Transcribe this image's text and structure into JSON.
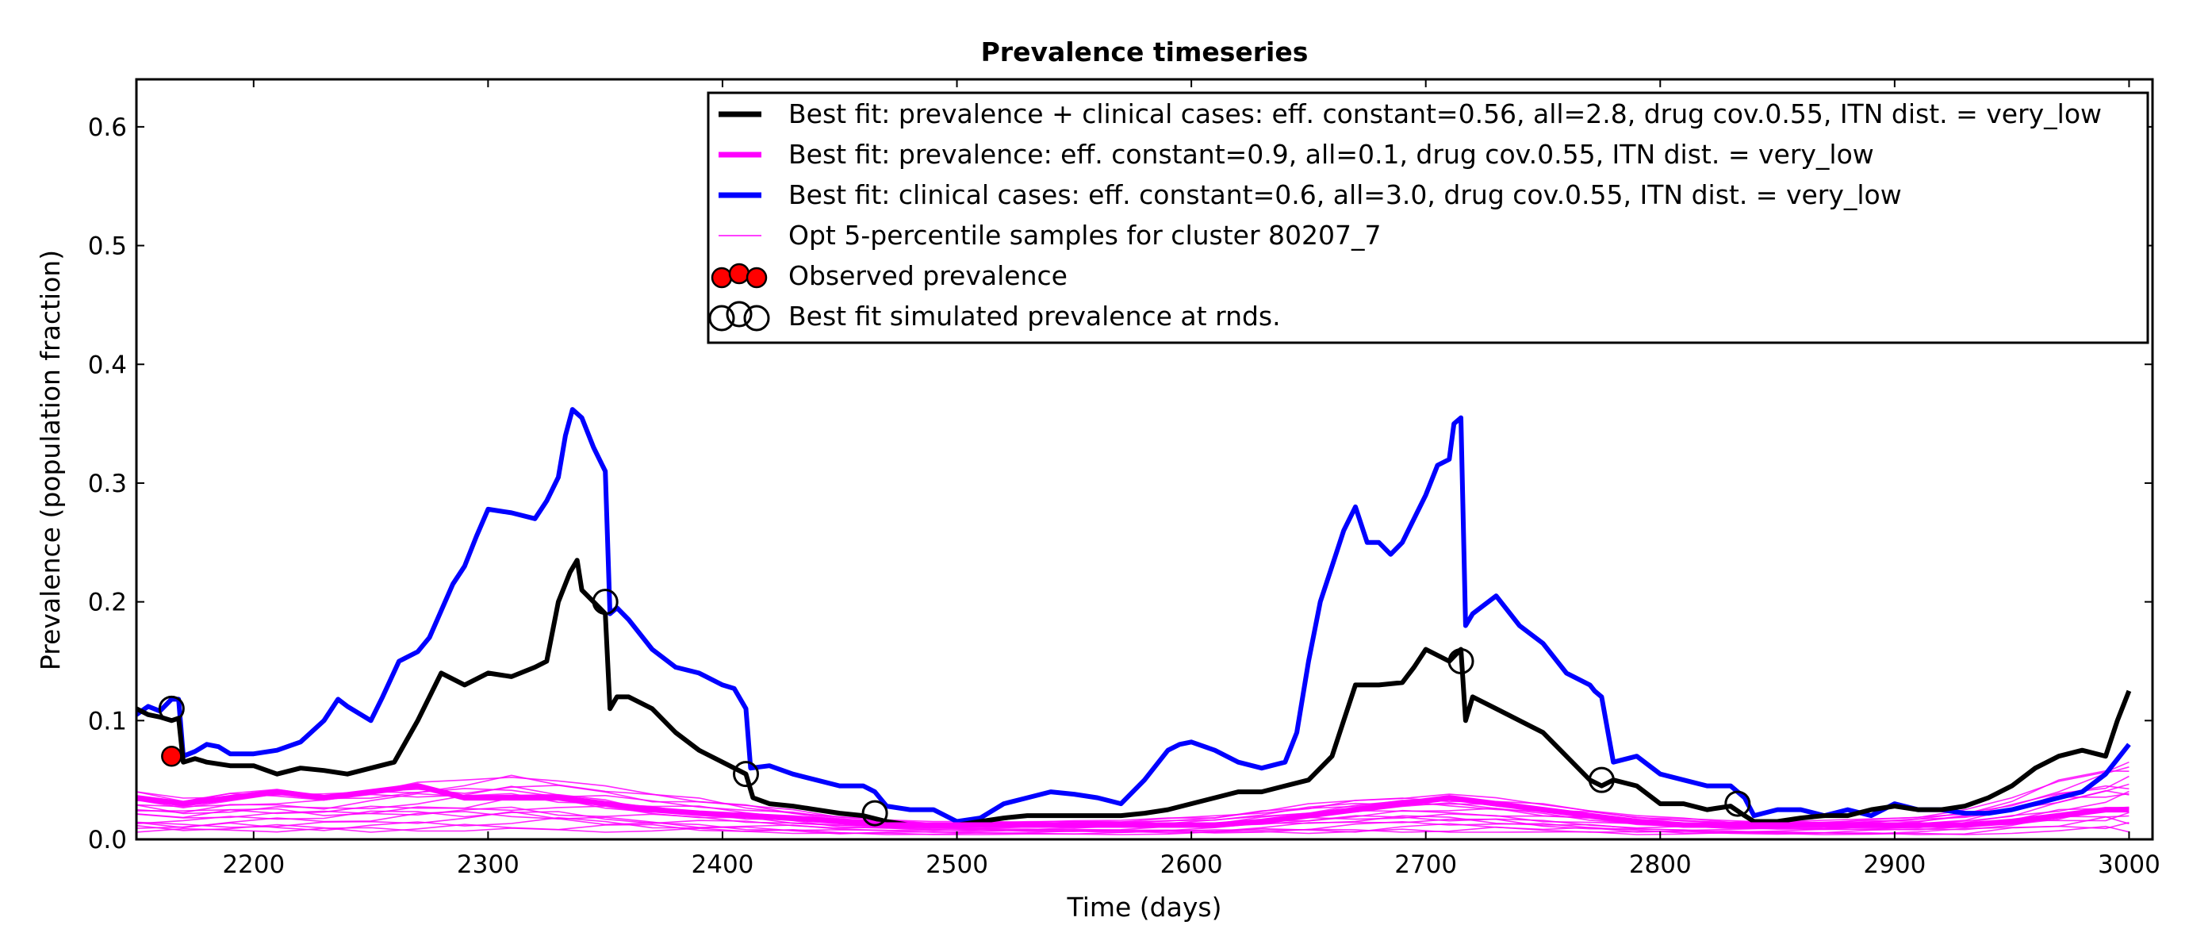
{
  "chart_data": {
    "type": "line",
    "title": "Prevalence timeseries",
    "xlabel": "Time (days)",
    "ylabel": "Prevalence (population fraction)",
    "xlim": [
      2150,
      3010
    ],
    "ylim": [
      0.0,
      0.64
    ],
    "xticks": [
      2200,
      2300,
      2400,
      2500,
      2600,
      2700,
      2800,
      2900,
      3000
    ],
    "yticks": [
      0.0,
      0.1,
      0.2,
      0.3,
      0.4,
      0.5,
      0.6
    ],
    "ytick_labels": [
      "0.0",
      "0.1",
      "0.2",
      "0.3",
      "0.4",
      "0.5",
      "0.6"
    ],
    "grid": false,
    "legend_position": "top-right",
    "colors": {
      "combined": "#000000",
      "prevalence": "#ff00ff",
      "clinical": "#0000ff",
      "samples": "#ff00ff",
      "observed": "#ff0000"
    },
    "legend": [
      {
        "key": "combined",
        "label": "Best fit: prevalence + clinical cases: eff. constant=0.56, all=2.8, drug cov.0.55, ITN dist. = very_low",
        "style": "thick-line"
      },
      {
        "key": "prevalence",
        "label": "Best fit: prevalence: eff. constant=0.9, all=0.1, drug cov.0.55, ITN dist. = very_low",
        "style": "thick-line"
      },
      {
        "key": "clinical",
        "label": "Best fit: clinical cases: eff. constant=0.6, all=3.0, drug cov.0.55, ITN dist. = very_low",
        "style": "thick-line"
      },
      {
        "key": "samples",
        "label": "Opt 5-percentile samples for cluster 80207_7",
        "style": "thin-line"
      },
      {
        "key": "observed",
        "label": "Observed prevalence",
        "style": "filled-markers"
      },
      {
        "key": "simulated_points",
        "label": "Best fit simulated prevalence at rnds.",
        "style": "open-markers"
      }
    ],
    "series": [
      {
        "key": "clinical",
        "x": [
          2150,
          2155,
          2160,
          2165,
          2168,
          2170,
          2175,
          2180,
          2185,
          2190,
          2200,
          2210,
          2220,
          2230,
          2236,
          2240,
          2250,
          2255,
          2262,
          2270,
          2275,
          2285,
          2290,
          2295,
          2300,
          2310,
          2320,
          2325,
          2330,
          2333,
          2336,
          2340,
          2345,
          2350,
          2352,
          2355,
          2360,
          2370,
          2380,
          2390,
          2400,
          2405,
          2410,
          2412,
          2420,
          2430,
          2440,
          2450,
          2460,
          2465,
          2470,
          2480,
          2490,
          2500,
          2510,
          2520,
          2530,
          2540,
          2550,
          2560,
          2570,
          2580,
          2590,
          2595,
          2600,
          2610,
          2620,
          2630,
          2640,
          2645,
          2650,
          2655,
          2660,
          2665,
          2670,
          2675,
          2680,
          2685,
          2690,
          2695,
          2700,
          2705,
          2710,
          2712,
          2715,
          2717,
          2720,
          2730,
          2740,
          2750,
          2760,
          2770,
          2772,
          2775,
          2780,
          2790,
          2800,
          2810,
          2820,
          2830,
          2836,
          2840,
          2850,
          2860,
          2870,
          2880,
          2890,
          2900,
          2910,
          2920,
          2930,
          2940,
          2950,
          2960,
          2970,
          2980,
          2990,
          3000
        ],
        "y": [
          0.105,
          0.112,
          0.108,
          0.118,
          0.118,
          0.07,
          0.074,
          0.08,
          0.078,
          0.072,
          0.072,
          0.075,
          0.082,
          0.1,
          0.118,
          0.112,
          0.1,
          0.12,
          0.15,
          0.158,
          0.17,
          0.215,
          0.23,
          0.255,
          0.278,
          0.275,
          0.27,
          0.285,
          0.305,
          0.34,
          0.362,
          0.355,
          0.33,
          0.31,
          0.19,
          0.195,
          0.185,
          0.16,
          0.145,
          0.14,
          0.13,
          0.127,
          0.11,
          0.06,
          0.062,
          0.055,
          0.05,
          0.045,
          0.045,
          0.04,
          0.028,
          0.025,
          0.025,
          0.015,
          0.018,
          0.03,
          0.035,
          0.04,
          0.038,
          0.035,
          0.03,
          0.05,
          0.075,
          0.08,
          0.082,
          0.075,
          0.065,
          0.06,
          0.065,
          0.09,
          0.15,
          0.2,
          0.23,
          0.26,
          0.28,
          0.25,
          0.25,
          0.24,
          0.25,
          0.27,
          0.29,
          0.315,
          0.32,
          0.35,
          0.355,
          0.18,
          0.19,
          0.205,
          0.18,
          0.165,
          0.14,
          0.13,
          0.125,
          0.12,
          0.065,
          0.07,
          0.055,
          0.05,
          0.045,
          0.045,
          0.035,
          0.02,
          0.025,
          0.025,
          0.02,
          0.025,
          0.02,
          0.03,
          0.025,
          0.025,
          0.022,
          0.022,
          0.025,
          0.03,
          0.035,
          0.04,
          0.055,
          0.08
        ]
      },
      {
        "key": "combined",
        "x": [
          2150,
          2155,
          2160,
          2165,
          2168,
          2170,
          2175,
          2180,
          2190,
          2200,
          2210,
          2220,
          2230,
          2240,
          2250,
          2260,
          2270,
          2280,
          2290,
          2300,
          2310,
          2320,
          2325,
          2330,
          2335,
          2338,
          2340,
          2345,
          2350,
          2352,
          2355,
          2360,
          2370,
          2380,
          2390,
          2400,
          2410,
          2413,
          2420,
          2430,
          2440,
          2450,
          2460,
          2470,
          2480,
          2490,
          2500,
          2510,
          2520,
          2530,
          2540,
          2550,
          2560,
          2570,
          2580,
          2590,
          2600,
          2610,
          2620,
          2630,
          2640,
          2650,
          2660,
          2665,
          2670,
          2680,
          2690,
          2695,
          2700,
          2705,
          2710,
          2715,
          2717,
          2720,
          2730,
          2740,
          2750,
          2760,
          2770,
          2775,
          2780,
          2790,
          2800,
          2810,
          2820,
          2830,
          2836,
          2840,
          2850,
          2860,
          2870,
          2880,
          2890,
          2900,
          2910,
          2920,
          2930,
          2940,
          2950,
          2960,
          2970,
          2980,
          2990,
          2995,
          3000
        ],
        "y": [
          0.11,
          0.105,
          0.103,
          0.1,
          0.102,
          0.065,
          0.068,
          0.065,
          0.062,
          0.062,
          0.055,
          0.06,
          0.058,
          0.055,
          0.06,
          0.065,
          0.1,
          0.14,
          0.13,
          0.14,
          0.137,
          0.145,
          0.15,
          0.2,
          0.225,
          0.235,
          0.21,
          0.2,
          0.19,
          0.11,
          0.12,
          0.12,
          0.11,
          0.09,
          0.075,
          0.065,
          0.055,
          0.035,
          0.03,
          0.028,
          0.025,
          0.022,
          0.02,
          0.015,
          0.012,
          0.012,
          0.012,
          0.015,
          0.018,
          0.02,
          0.02,
          0.02,
          0.02,
          0.02,
          0.022,
          0.025,
          0.03,
          0.035,
          0.04,
          0.04,
          0.045,
          0.05,
          0.07,
          0.1,
          0.13,
          0.13,
          0.132,
          0.145,
          0.16,
          0.155,
          0.15,
          0.16,
          0.1,
          0.12,
          0.11,
          0.1,
          0.09,
          0.07,
          0.05,
          0.045,
          0.05,
          0.045,
          0.03,
          0.03,
          0.025,
          0.028,
          0.02,
          0.015,
          0.015,
          0.018,
          0.02,
          0.02,
          0.025,
          0.028,
          0.025,
          0.025,
          0.028,
          0.035,
          0.045,
          0.06,
          0.07,
          0.075,
          0.07,
          0.1,
          0.125
        ]
      },
      {
        "key": "prevalence",
        "x": [
          2150,
          2170,
          2190,
          2210,
          2230,
          2250,
          2270,
          2290,
          2310,
          2330,
          2350,
          2370,
          2390,
          2410,
          2430,
          2450,
          2470,
          2490,
          2510,
          2530,
          2550,
          2570,
          2590,
          2610,
          2630,
          2650,
          2670,
          2690,
          2710,
          2730,
          2750,
          2770,
          2790,
          2810,
          2830,
          2850,
          2870,
          2890,
          2910,
          2930,
          2950,
          2970,
          2990,
          3000
        ],
        "y": [
          0.035,
          0.03,
          0.035,
          0.04,
          0.035,
          0.04,
          0.045,
          0.035,
          0.035,
          0.035,
          0.03,
          0.025,
          0.022,
          0.02,
          0.018,
          0.015,
          0.012,
          0.012,
          0.012,
          0.012,
          0.012,
          0.012,
          0.012,
          0.012,
          0.015,
          0.02,
          0.025,
          0.03,
          0.035,
          0.03,
          0.025,
          0.02,
          0.015,
          0.012,
          0.012,
          0.012,
          0.012,
          0.012,
          0.012,
          0.012,
          0.015,
          0.02,
          0.025,
          0.025
        ]
      }
    ],
    "sample_band": {
      "key": "samples",
      "x": [
        2150,
        2170,
        2190,
        2210,
        2230,
        2250,
        2270,
        2290,
        2310,
        2330,
        2350,
        2370,
        2390,
        2410,
        2430,
        2450,
        2470,
        2490,
        2510,
        2530,
        2550,
        2570,
        2590,
        2610,
        2630,
        2650,
        2670,
        2690,
        2710,
        2730,
        2750,
        2770,
        2790,
        2810,
        2830,
        2850,
        2870,
        2890,
        2910,
        2930,
        2950,
        2970,
        2990,
        3000
      ],
      "upper": [
        0.04,
        0.035,
        0.04,
        0.042,
        0.04,
        0.045,
        0.048,
        0.05,
        0.055,
        0.05,
        0.045,
        0.038,
        0.035,
        0.03,
        0.025,
        0.02,
        0.018,
        0.015,
        0.015,
        0.015,
        0.016,
        0.016,
        0.018,
        0.02,
        0.025,
        0.03,
        0.035,
        0.038,
        0.038,
        0.035,
        0.03,
        0.025,
        0.02,
        0.018,
        0.016,
        0.016,
        0.016,
        0.018,
        0.02,
        0.025,
        0.035,
        0.05,
        0.06,
        0.065
      ],
      "lower": [
        0.005,
        0.005,
        0.006,
        0.006,
        0.006,
        0.006,
        0.007,
        0.007,
        0.007,
        0.007,
        0.006,
        0.006,
        0.005,
        0.005,
        0.005,
        0.004,
        0.004,
        0.004,
        0.004,
        0.004,
        0.004,
        0.004,
        0.004,
        0.004,
        0.005,
        0.005,
        0.005,
        0.006,
        0.006,
        0.006,
        0.005,
        0.005,
        0.004,
        0.004,
        0.004,
        0.004,
        0.004,
        0.004,
        0.004,
        0.004,
        0.005,
        0.005,
        0.006,
        0.006
      ]
    },
    "observed_prevalence": {
      "x": [
        2165
      ],
      "y": [
        0.07
      ]
    },
    "simulated_points": {
      "x": [
        2165,
        2350,
        2410,
        2465,
        2715,
        2775,
        2833
      ],
      "y": [
        0.11,
        0.2,
        0.055,
        0.022,
        0.15,
        0.05,
        0.03
      ]
    }
  }
}
